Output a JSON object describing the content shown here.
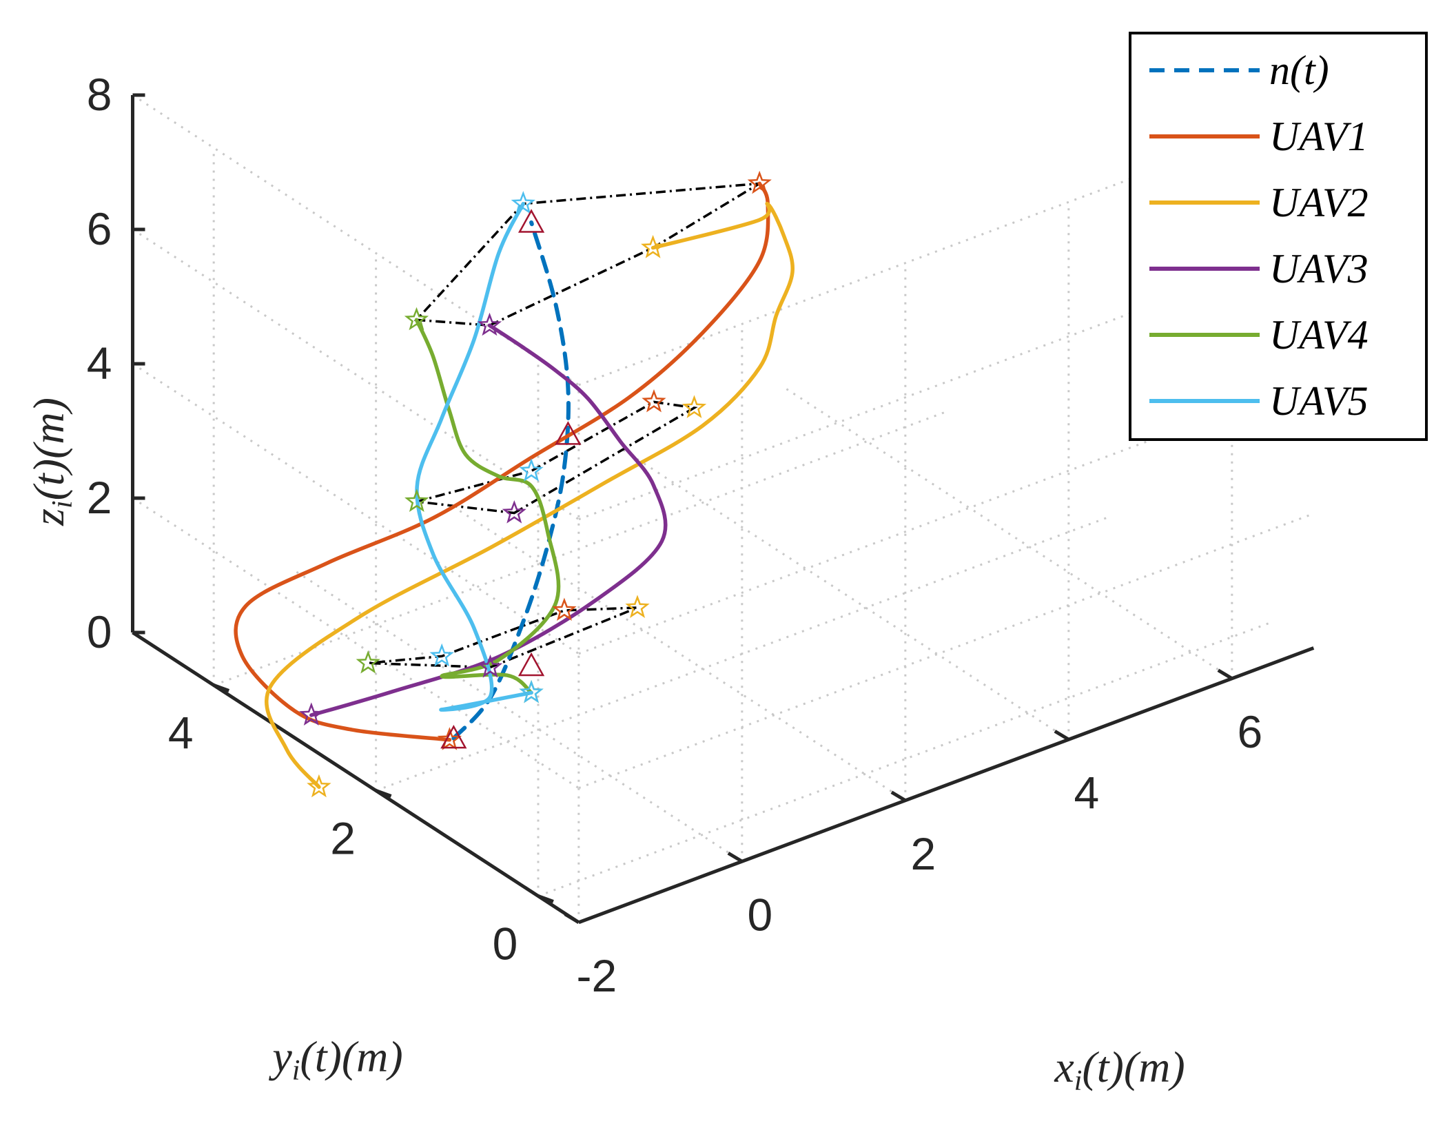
{
  "chart_data": {
    "type": "line",
    "projection": "3d",
    "title": "",
    "xlabel": "x_i(t)(m)",
    "ylabel": "y_i(t)(m)",
    "zlabel": "z_i(t)(m)",
    "xlabel_parts": {
      "var": "x",
      "sub": "i",
      "rest": "(t)(m)"
    },
    "ylabel_parts": {
      "var": "y",
      "sub": "i",
      "rest": "(t)(m)"
    },
    "zlabel_parts": {
      "var": "z",
      "sub": "i",
      "rest": "(t)(m)"
    },
    "xlim": [
      -2,
      7
    ],
    "ylim": [
      -0.5,
      5
    ],
    "zlim": [
      0,
      8
    ],
    "xticks": [
      -2,
      0,
      2,
      4,
      6
    ],
    "xtick_labels": [
      "-2",
      "0",
      "2",
      "4",
      "6"
    ],
    "yticks": [
      0,
      2,
      4
    ],
    "ytick_labels": [
      "0",
      "2",
      "4"
    ],
    "zticks": [
      0,
      2,
      4,
      6,
      8
    ],
    "ztick_labels": [
      "0",
      "2",
      "4",
      "6",
      "8"
    ],
    "grid": true,
    "legend_position": "top-right",
    "legend": [
      "n(t)",
      "UAV1",
      "UAV2",
      "UAV3",
      "UAV4",
      "UAV5"
    ],
    "series": [
      {
        "name": "n(t)",
        "style": "dashed",
        "color": "#0072BD",
        "points": [
          [
            -0.85,
            2.2,
            0.1
          ],
          [
            -0.4,
            2.2,
            0.5
          ],
          [
            0.2,
            2.4,
            1.2
          ],
          [
            0.5,
            2.4,
            2.2
          ],
          [
            0.65,
            2.35,
            3.3
          ],
          [
            0.7,
            2.35,
            4.5
          ],
          [
            0.55,
            2.35,
            5.8
          ],
          [
            0.3,
            2.4,
            7.1
          ]
        ]
      },
      {
        "name": "UAV1",
        "style": "solid",
        "color": "#D95319",
        "points": [
          [
            -0.9,
            2.2,
            0.1
          ],
          [
            -1.7,
            2.6,
            0.3
          ],
          [
            -2.0,
            3.0,
            0.4
          ],
          [
            -2.15,
            3.5,
            0.9
          ],
          [
            -2.0,
            3.6,
            1.5
          ],
          [
            -1.5,
            3.1,
            2.3
          ],
          [
            -0.7,
            2.6,
            3.0
          ],
          [
            0.3,
            2.4,
            3.6
          ],
          [
            1.3,
            2.2,
            4.2
          ],
          [
            2.0,
            2.0,
            5.0
          ],
          [
            2.5,
            1.8,
            6.0
          ],
          [
            2.6,
            1.8,
            6.8
          ],
          [
            2.3,
            1.6,
            7.4
          ]
        ]
      },
      {
        "name": "UAV2",
        "style": "solid",
        "color": "#EDB120",
        "points": [
          [
            -2.4,
            2.3,
            0.0
          ],
          [
            -2.6,
            2.5,
            0.5
          ],
          [
            -2.3,
            3.0,
            0.9
          ],
          [
            -1.0,
            3.2,
            1.2
          ],
          [
            0.6,
            3.2,
            1.5
          ],
          [
            1.7,
            2.9,
            2.2
          ],
          [
            2.5,
            2.5,
            3.0
          ],
          [
            3.0,
            2.3,
            3.8
          ],
          [
            3.1,
            2.2,
            4.6
          ],
          [
            3.1,
            2.0,
            5.4
          ],
          [
            2.9,
            1.9,
            6.1
          ],
          [
            2.6,
            1.8,
            6.8
          ],
          [
            1.7,
            1.0,
            7.6
          ],
          [
            0.3,
            0.9,
            7.9
          ]
        ]
      },
      {
        "name": "UAV3",
        "style": "solid",
        "color": "#7E2F8E",
        "points": [
          [
            -1.6,
            3.2,
            0.0
          ],
          [
            -0.6,
            3.2,
            -0.1
          ],
          [
            0.4,
            2.9,
            0.2
          ],
          [
            1.2,
            2.5,
            1.0
          ],
          [
            1.6,
            2.1,
            2.0
          ],
          [
            1.4,
            2.0,
            3.0
          ],
          [
            0.7,
            1.7,
            4.2
          ],
          [
            0.0,
            1.4,
            5.4
          ],
          [
            -0.8,
            1.0,
            6.5
          ],
          [
            -1.5,
            0.7,
            7.4
          ],
          [
            -1.9,
            0.7,
            7.9
          ]
        ]
      },
      {
        "name": "UAV4",
        "style": "solid",
        "color": "#77AC30",
        "points": [
          [
            0.3,
            2.4,
            0.1
          ],
          [
            0.4,
            2.8,
            0.0
          ],
          [
            -0.2,
            3.0,
            0.1
          ],
          [
            0.2,
            2.7,
            0.4
          ],
          [
            0.6,
            2.4,
            1.3
          ],
          [
            0.5,
            2.4,
            2.4
          ],
          [
            0.2,
            2.3,
            3.3
          ],
          [
            -0.5,
            2.0,
            4.0
          ],
          [
            -1.3,
            1.6,
            5.0
          ],
          [
            -1.7,
            1.4,
            6.0
          ],
          [
            -1.9,
            1.4,
            6.9
          ],
          [
            -2.0,
            1.5,
            7.4
          ]
        ]
      },
      {
        "name": "UAV5",
        "style": "solid",
        "color": "#4DBEEE",
        "points": [
          [
            0.3,
            2.4,
            0.1
          ],
          [
            -0.6,
            2.6,
            0.1
          ],
          [
            -0.3,
            2.3,
            0.4
          ],
          [
            -0.5,
            2.3,
            1.5
          ],
          [
            -0.9,
            2.4,
            2.7
          ],
          [
            -1.1,
            2.4,
            3.8
          ],
          [
            -0.9,
            2.3,
            4.8
          ],
          [
            -0.5,
            2.3,
            5.8
          ],
          [
            0.0,
            2.5,
            6.7
          ],
          [
            0.3,
            2.5,
            7.3
          ]
        ]
      }
    ],
    "formations": [
      {
        "z_level": "top",
        "points": [
          [
            -1.9,
            0.7,
            7.9
          ],
          [
            0.3,
            0.9,
            7.9
          ],
          [
            2.3,
            1.6,
            7.4
          ],
          [
            0.3,
            2.5,
            7.3
          ],
          [
            -2.0,
            1.5,
            7.4
          ]
        ]
      },
      {
        "z_level": "middle",
        "points": [
          [
            -1.3,
            1.0,
            4.6
          ],
          [
            1.6,
            1.7,
            4.3
          ],
          [
            2.0,
            2.6,
            3.5
          ],
          [
            0.3,
            2.4,
            3.4
          ],
          [
            -1.6,
            1.9,
            4.2
          ]
        ]
      },
      {
        "z_level": "bottom",
        "points": [
          [
            -0.6,
            2.0,
            1.2
          ],
          [
            1.5,
            2.3,
            0.9
          ],
          [
            1.3,
            3.0,
            0.4
          ],
          [
            -0.2,
            3.0,
            0.4
          ],
          [
            -1.5,
            2.6,
            1.2
          ]
        ]
      }
    ],
    "markers": [
      {
        "shape": "triangle",
        "color": "#A2142F",
        "points": [
          [
            -0.85,
            2.2,
            0.1
          ],
          [
            0.3,
            2.4,
            0.5
          ],
          [
            0.7,
            2.35,
            3.8
          ],
          [
            0.3,
            2.4,
            7.1
          ]
        ]
      }
    ]
  }
}
